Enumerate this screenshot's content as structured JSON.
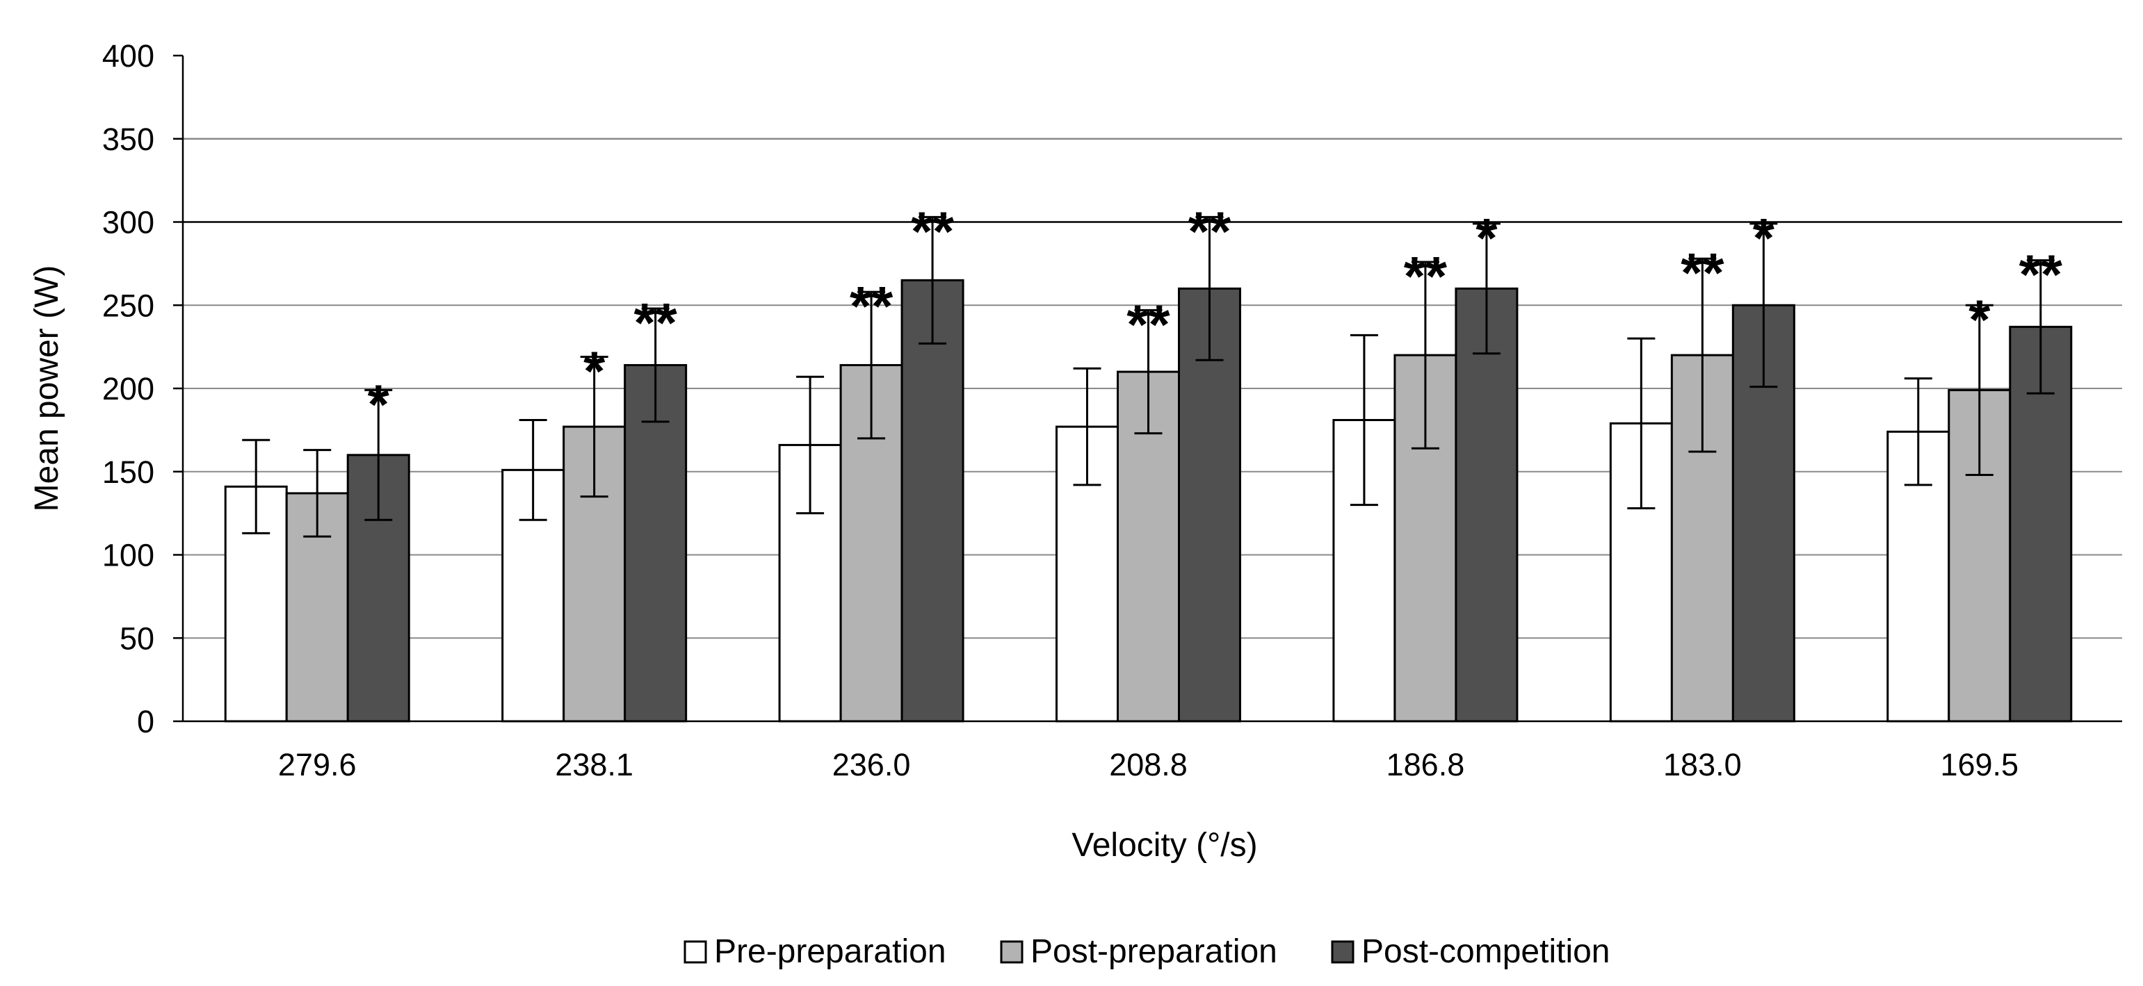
{
  "chart_data": {
    "type": "bar",
    "title": "",
    "xlabel": "Velocity (°/s)",
    "ylabel": "Mean power (W)",
    "ylim": [
      0,
      400
    ],
    "yticks": [
      0,
      50,
      100,
      150,
      200,
      250,
      300,
      350,
      400
    ],
    "grid": true,
    "legend_position": "bottom-center",
    "categories": [
      "279.6",
      "238.1",
      "236.0",
      "208.8",
      "186.8",
      "183.0",
      "169.5"
    ],
    "series": [
      {
        "name": "Pre-preparation",
        "color": "#ffffff",
        "values": [
          141,
          151,
          166,
          177,
          181,
          179,
          174
        ],
        "error": [
          28,
          30,
          41,
          35,
          51,
          51,
          32
        ],
        "significance": [
          "",
          "",
          "",
          "",
          "",
          "",
          ""
        ]
      },
      {
        "name": "Post-preparation",
        "color": "#b3b3b3",
        "values": [
          137,
          177,
          214,
          210,
          220,
          220,
          199
        ],
        "error": [
          26,
          42,
          44,
          37,
          56,
          58,
          51
        ],
        "significance": [
          "",
          "*",
          "**",
          "**",
          "**",
          "**",
          "*"
        ]
      },
      {
        "name": "Post-competition",
        "color": "#505050",
        "values": [
          160,
          214,
          265,
          260,
          260,
          250,
          237
        ],
        "error": [
          39,
          34,
          38,
          43,
          39,
          49,
          40
        ],
        "significance": [
          "*",
          "**",
          "**",
          "**",
          "*",
          "*",
          "**"
        ]
      }
    ]
  }
}
